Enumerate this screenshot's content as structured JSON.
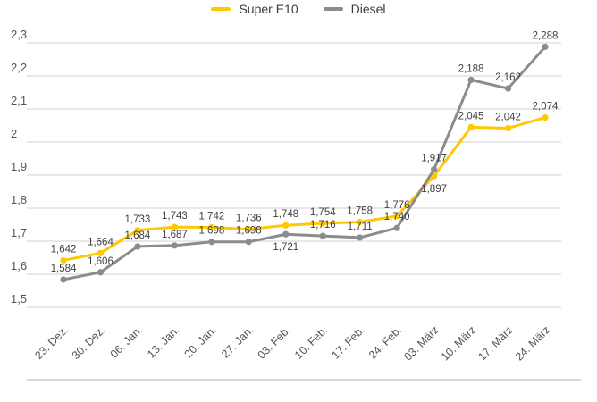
{
  "chart_data": {
    "type": "line",
    "title": "",
    "legend_position": "top",
    "grid": true,
    "background": "#ffffff",
    "categories": [
      "23. Dez.",
      "30. Dez.",
      "06. Jan.",
      "13. Jan.",
      "20. Jan.",
      "27. Jan.",
      "03. Feb.",
      "10. Feb.",
      "17. Feb.",
      "24. Feb.",
      "03. März",
      "10. März",
      "17. März",
      "24. März"
    ],
    "series": [
      {
        "name": "Super E10",
        "color": "#FFC800",
        "values": [
          1.642,
          1.664,
          1.733,
          1.743,
          1.742,
          1.736,
          1.748,
          1.754,
          1.758,
          1.776,
          1.897,
          2.045,
          2.042,
          2.074
        ],
        "point_labels": [
          "1,642",
          "1,664",
          "1,733",
          "1,743",
          "1,742",
          "1,736",
          "1,748",
          "1,754",
          "1,758",
          "1,776",
          "1,897",
          "2,045",
          "2,042",
          "2,074"
        ],
        "labels_below_indices": [
          10
        ]
      },
      {
        "name": "Diesel",
        "color": "#8C8C8C",
        "values": [
          1.584,
          1.606,
          1.684,
          1.687,
          1.698,
          1.698,
          1.721,
          1.716,
          1.711,
          1.74,
          1.917,
          2.188,
          2.162,
          2.288
        ],
        "point_labels": [
          "1,584",
          "1,606",
          "1,684",
          "1,687",
          "1,698",
          "1,698",
          "1,721",
          "1,716",
          "1,711",
          "1,740",
          "1,917",
          "2,188",
          "2,162",
          "2,288"
        ],
        "labels_below_indices": [
          6
        ]
      }
    ],
    "y_axis": {
      "min": 1.5,
      "max": 2.3,
      "tick_step": 0.1,
      "tick_labels": [
        "1,5",
        "1,6",
        "1,7",
        "1,8",
        "1,9",
        "2",
        "2,1",
        "2,2",
        "2,3"
      ]
    },
    "x_axis": {
      "label_rotation_deg": -45
    }
  },
  "colors": {
    "grid_line": "#D9D9D9",
    "axis_text": "#545454",
    "data_label_text": "#3F3F3F",
    "legend_text": "#3C3C3C",
    "divider": "#C9C9C9"
  }
}
